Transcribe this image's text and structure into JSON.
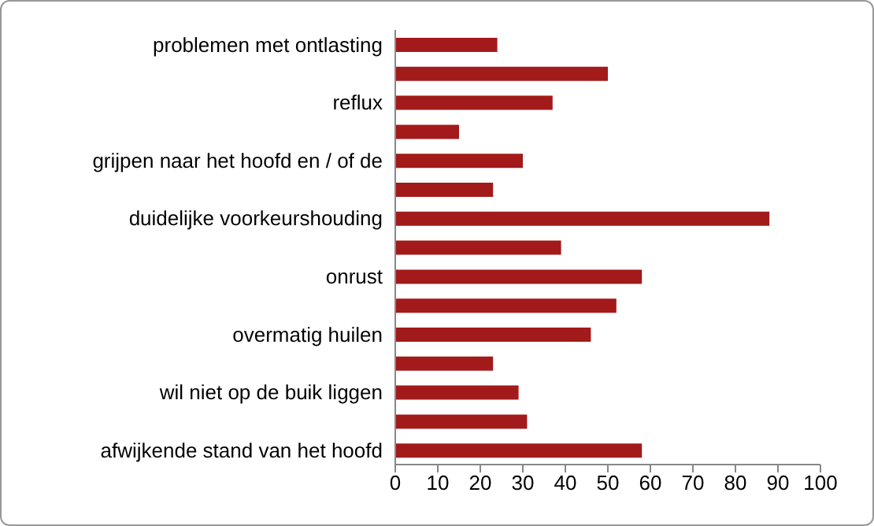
{
  "chart_data": {
    "type": "bar",
    "orientation": "horizontal",
    "categories": [
      "problemen met ontlasting",
      null,
      "reflux",
      null,
      "grijpen naar het hoofd en / of de",
      null,
      "duidelijke voorkeurshouding",
      null,
      "onrust",
      null,
      "overmatig huilen",
      null,
      "wil niet op de buik liggen",
      null,
      "afwijkende stand van het hoofd"
    ],
    "values": [
      24,
      50,
      37,
      15,
      30,
      23,
      88,
      39,
      58,
      52,
      46,
      23,
      29,
      31,
      58
    ],
    "color": "#a31a1a",
    "xlim": [
      0,
      100
    ],
    "xticks": [
      0,
      10,
      20,
      30,
      40,
      50,
      60,
      70,
      80,
      90,
      100
    ],
    "grid": false,
    "legend": false
  }
}
